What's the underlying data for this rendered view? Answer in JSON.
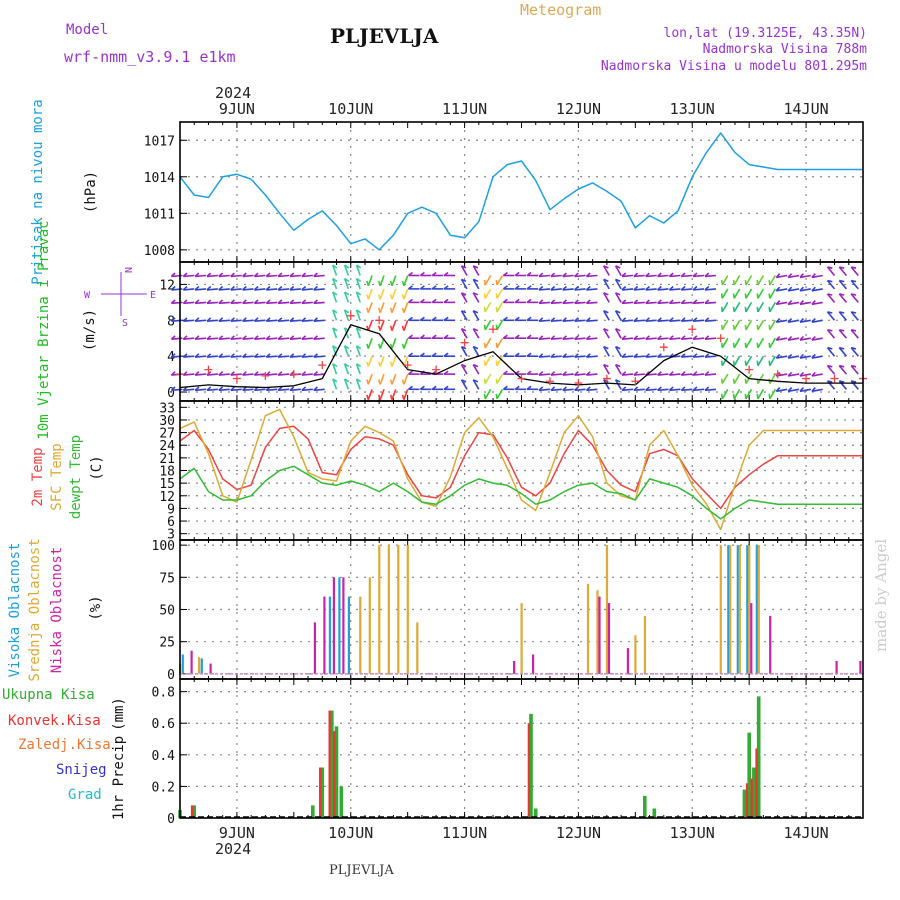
{
  "header": {
    "title": "PLJEVLJA",
    "meteogram": "Meteogram",
    "model_label": "Model",
    "model_name": "wrf-nmm_v3.9.1  e1km",
    "lonlat": "lon,lat (19.3125E, 43.35N)",
    "altitude": "Nadmorska Visina 788m",
    "model_altitude": "Nadmorska Visina u modelu 801.295m",
    "watermark": "made by Angel",
    "bottom_title": "PLJEVLJA"
  },
  "colors": {
    "pressure": "#1ea0e0",
    "wind_label": "#22bb22",
    "compass": "#9933cc",
    "temp2m": "#ee4444",
    "sfc": "#ddaa33",
    "dew": "#33bb33",
    "cloud_high": "#1ea0e0",
    "cloud_mid": "#ddaa33",
    "cloud_low": "#cc22aa",
    "precip_total": "#33aa33",
    "precip_conv": "#ee3333",
    "precip_frozen": "#ee7733",
    "snow": "#3333cc",
    "hail": "#22bbcc"
  },
  "chart_data": [
    {
      "type": "line",
      "panel": "pressure",
      "ylabel": "Pritisak na nivou mora",
      "unit": "(hPa)",
      "ylim": [
        1007,
        1018.5
      ],
      "yticks": [
        1008,
        1011,
        1014,
        1017
      ],
      "x_hours": [
        0,
        3,
        6,
        9,
        12,
        15,
        18,
        21,
        24,
        27,
        30,
        33,
        36,
        39,
        42,
        45,
        48,
        51,
        54,
        57,
        60,
        63,
        66,
        69,
        72,
        75,
        78,
        81,
        84,
        87,
        90,
        93,
        96,
        99,
        102,
        105,
        108,
        111,
        114,
        117,
        120,
        123,
        126,
        129,
        132,
        135,
        138,
        141,
        144
      ],
      "values": [
        1014.0,
        1012.5,
        1012.3,
        1014.0,
        1014.2,
        1013.8,
        1012.5,
        1011.0,
        1009.6,
        1010.5,
        1011.2,
        1010.0,
        1008.5,
        1008.9,
        1008.0,
        1009.2,
        1011.0,
        1011.5,
        1011.0,
        1009.2,
        1009.0,
        1010.3,
        1014.0,
        1015.0,
        1015.3,
        1013.7,
        1011.3,
        1012.2,
        1013.0,
        1013.5,
        1012.8,
        1012.0,
        1009.8,
        1010.8,
        1010.2,
        1011.2,
        1014.0,
        1016.0,
        1017.6,
        1016.0,
        1015.0,
        1014.8,
        1014.6,
        1014.6,
        1014.6,
        1014.6,
        1014.6,
        1014.6,
        1014.6
      ]
    },
    {
      "type": "line",
      "panel": "wind",
      "ylabel": "10m Vjetar Brzina i Pravac",
      "unit": "(m/s)",
      "compass": {
        "n": "N",
        "s": "S",
        "e": "E",
        "w": "W"
      },
      "ylim": [
        -1,
        14.5
      ],
      "yticks": [
        0,
        4,
        8,
        12
      ],
      "x_hours": [
        0,
        6,
        12,
        18,
        24,
        30,
        36,
        42,
        48,
        54,
        60,
        66,
        72,
        78,
        84,
        90,
        96,
        102,
        108,
        114,
        120,
        126,
        132,
        138,
        144
      ],
      "speed": [
        0.5,
        0.8,
        0.6,
        0.5,
        0.7,
        1.5,
        7.5,
        6.5,
        2.5,
        2.0,
        3.5,
        4.5,
        1.5,
        1.0,
        0.8,
        1.0,
        0.8,
        3.5,
        5.0,
        4.0,
        1.5,
        1.2,
        1.0,
        1.0,
        1.0
      ],
      "gust": [
        2.0,
        2.5,
        1.5,
        1.8,
        2.0,
        3.0,
        8.5,
        8.0,
        3.0,
        2.5,
        5.5,
        7.0,
        1.5,
        1.2,
        1.0,
        1.5,
        1.2,
        5.0,
        7.0,
        6.0,
        2.5,
        2.0,
        1.5,
        1.5,
        1.5
      ]
    },
    {
      "type": "line",
      "panel": "temperature",
      "ylabel": "2m Temp, SFC Temp, dewpt Temp",
      "unit": "(C)",
      "ylim": [
        1.5,
        34.5
      ],
      "yticks": [
        3,
        6,
        9,
        12,
        15,
        18,
        21,
        24,
        27,
        30,
        33
      ],
      "x_hours": [
        0,
        3,
        6,
        9,
        12,
        15,
        18,
        21,
        24,
        27,
        30,
        33,
        36,
        39,
        42,
        45,
        48,
        51,
        54,
        57,
        60,
        63,
        66,
        69,
        72,
        75,
        78,
        81,
        84,
        87,
        90,
        93,
        96,
        99,
        102,
        105,
        108,
        111,
        114,
        117,
        120,
        123,
        126,
        129,
        132,
        135,
        138,
        141,
        144
      ],
      "series": [
        {
          "name": "2m Temp",
          "values": [
            25,
            27.5,
            23,
            16,
            13.5,
            14.5,
            23.5,
            28,
            28.5,
            25.5,
            17.5,
            17,
            23,
            26,
            25.5,
            24,
            17,
            12,
            11.5,
            14,
            21.5,
            27,
            26.5,
            21,
            14,
            12,
            15,
            22,
            27.5,
            24,
            18,
            14.5,
            13,
            22,
            23,
            21.5,
            16,
            12.5,
            9,
            14,
            17,
            19.5,
            21.5,
            21.5,
            21.5,
            21.5,
            21.5,
            21.5,
            21.5
          ]
        },
        {
          "name": "SFC Temp",
          "values": [
            28,
            29.5,
            22,
            12,
            10.5,
            20.5,
            31,
            32.5,
            26,
            17.5,
            16,
            15.5,
            25,
            28.5,
            27,
            25,
            16,
            10.5,
            9.5,
            16.5,
            27,
            30.5,
            26,
            18.5,
            11,
            8.5,
            17.5,
            27,
            31,
            26,
            15,
            12,
            11,
            24,
            27.5,
            21.5,
            14.5,
            10,
            4,
            14.5,
            24,
            27.5,
            27.5,
            27.5,
            27.5,
            27.5,
            27.5,
            27.5,
            27.5
          ]
        },
        {
          "name": "dewpt Temp",
          "values": [
            16,
            18.5,
            13,
            11,
            11,
            12,
            15.5,
            18,
            19,
            17,
            15,
            14.5,
            15.5,
            14.5,
            13,
            15,
            13,
            10.5,
            10,
            12,
            14.5,
            16,
            15,
            14.5,
            12.5,
            10,
            11,
            13,
            14.5,
            15,
            13,
            12.5,
            11,
            16,
            15,
            14,
            12,
            9,
            6.5,
            9,
            11,
            10.5,
            10,
            10,
            10,
            10,
            10,
            10,
            10
          ]
        }
      ]
    },
    {
      "type": "bar",
      "panel": "clouds",
      "ylabel": "Visoka Oblacnost, Srednja Oblacnost, Niska Oblacnost",
      "unit": "(%)",
      "ylim": [
        -4,
        104
      ],
      "yticks": [
        0,
        25,
        50,
        75,
        100
      ],
      "series": [
        {
          "name": "Visoka Oblacnost",
          "points": [
            [
              1,
              15
            ],
            [
              5,
              12
            ],
            [
              32,
              60
            ],
            [
              34,
              75
            ],
            [
              36,
              60
            ],
            [
              116,
              100
            ],
            [
              118,
              100
            ],
            [
              120,
              100
            ],
            [
              122,
              100
            ]
          ]
        },
        {
          "name": "Srednja Oblacnost",
          "points": [
            [
              0,
              8
            ],
            [
              4,
              13
            ],
            [
              38,
              60
            ],
            [
              40,
              75
            ],
            [
              42,
              100
            ],
            [
              44,
              100
            ],
            [
              46,
              100
            ],
            [
              48,
              100
            ],
            [
              50,
              40
            ],
            [
              72,
              55
            ],
            [
              86,
              70
            ],
            [
              88,
              65
            ],
            [
              90,
              100
            ],
            [
              96,
              30
            ],
            [
              98,
              45
            ],
            [
              114,
              100
            ],
            [
              116,
              100
            ],
            [
              118,
              100
            ],
            [
              120,
              100
            ],
            [
              122,
              100
            ]
          ]
        },
        {
          "name": "Niska Oblacnost",
          "points": [
            [
              2,
              18
            ],
            [
              6,
              8
            ],
            [
              28,
              40
            ],
            [
              30,
              60
            ],
            [
              32,
              75
            ],
            [
              34,
              75
            ],
            [
              70,
              10
            ],
            [
              74,
              15
            ],
            [
              88,
              60
            ],
            [
              90,
              55
            ],
            [
              94,
              20
            ],
            [
              120,
              55
            ],
            [
              124,
              45
            ],
            [
              138,
              10
            ],
            [
              143,
              10
            ]
          ]
        }
      ]
    },
    {
      "type": "bar",
      "panel": "precip",
      "ylabel": "1hr Precip",
      "unit": "(mm)",
      "legend": [
        "Ukupna Kisa",
        "Konvek.Kisa",
        "Zaledj.Kisa",
        "Snijeg",
        "Grad"
      ],
      "ylim": [
        0,
        0.88
      ],
      "yticks": [
        0,
        0.2,
        0.4,
        0.6,
        0.8
      ],
      "series": [
        {
          "name": "Ukupna Kisa",
          "points": [
            [
              0,
              0.05
            ],
            [
              3,
              0.08
            ],
            [
              28,
              0.08
            ],
            [
              30,
              0.32
            ],
            [
              32,
              0.68
            ],
            [
              33,
              0.58
            ],
            [
              34,
              0.2
            ],
            [
              74,
              0.66
            ],
            [
              75,
              0.06
            ],
            [
              98,
              0.14
            ],
            [
              100,
              0.06
            ],
            [
              119,
              0.18
            ],
            [
              120,
              0.54
            ],
            [
              121,
              0.32
            ],
            [
              122,
              0.77
            ]
          ]
        },
        {
          "name": "Konvek.Kisa",
          "points": [
            [
              3,
              0.08
            ],
            [
              30,
              0.32
            ],
            [
              32,
              0.68
            ],
            [
              33,
              0.55
            ],
            [
              74,
              0.6
            ],
            [
              120,
              0.22
            ],
            [
              121,
              0.25
            ],
            [
              122,
              0.44
            ]
          ]
        }
      ]
    }
  ],
  "time_axis": {
    "year": "2024",
    "day_labels": [
      "9JUN",
      "10JUN",
      "11JUN",
      "12JUN",
      "13JUN",
      "14JUN"
    ]
  }
}
